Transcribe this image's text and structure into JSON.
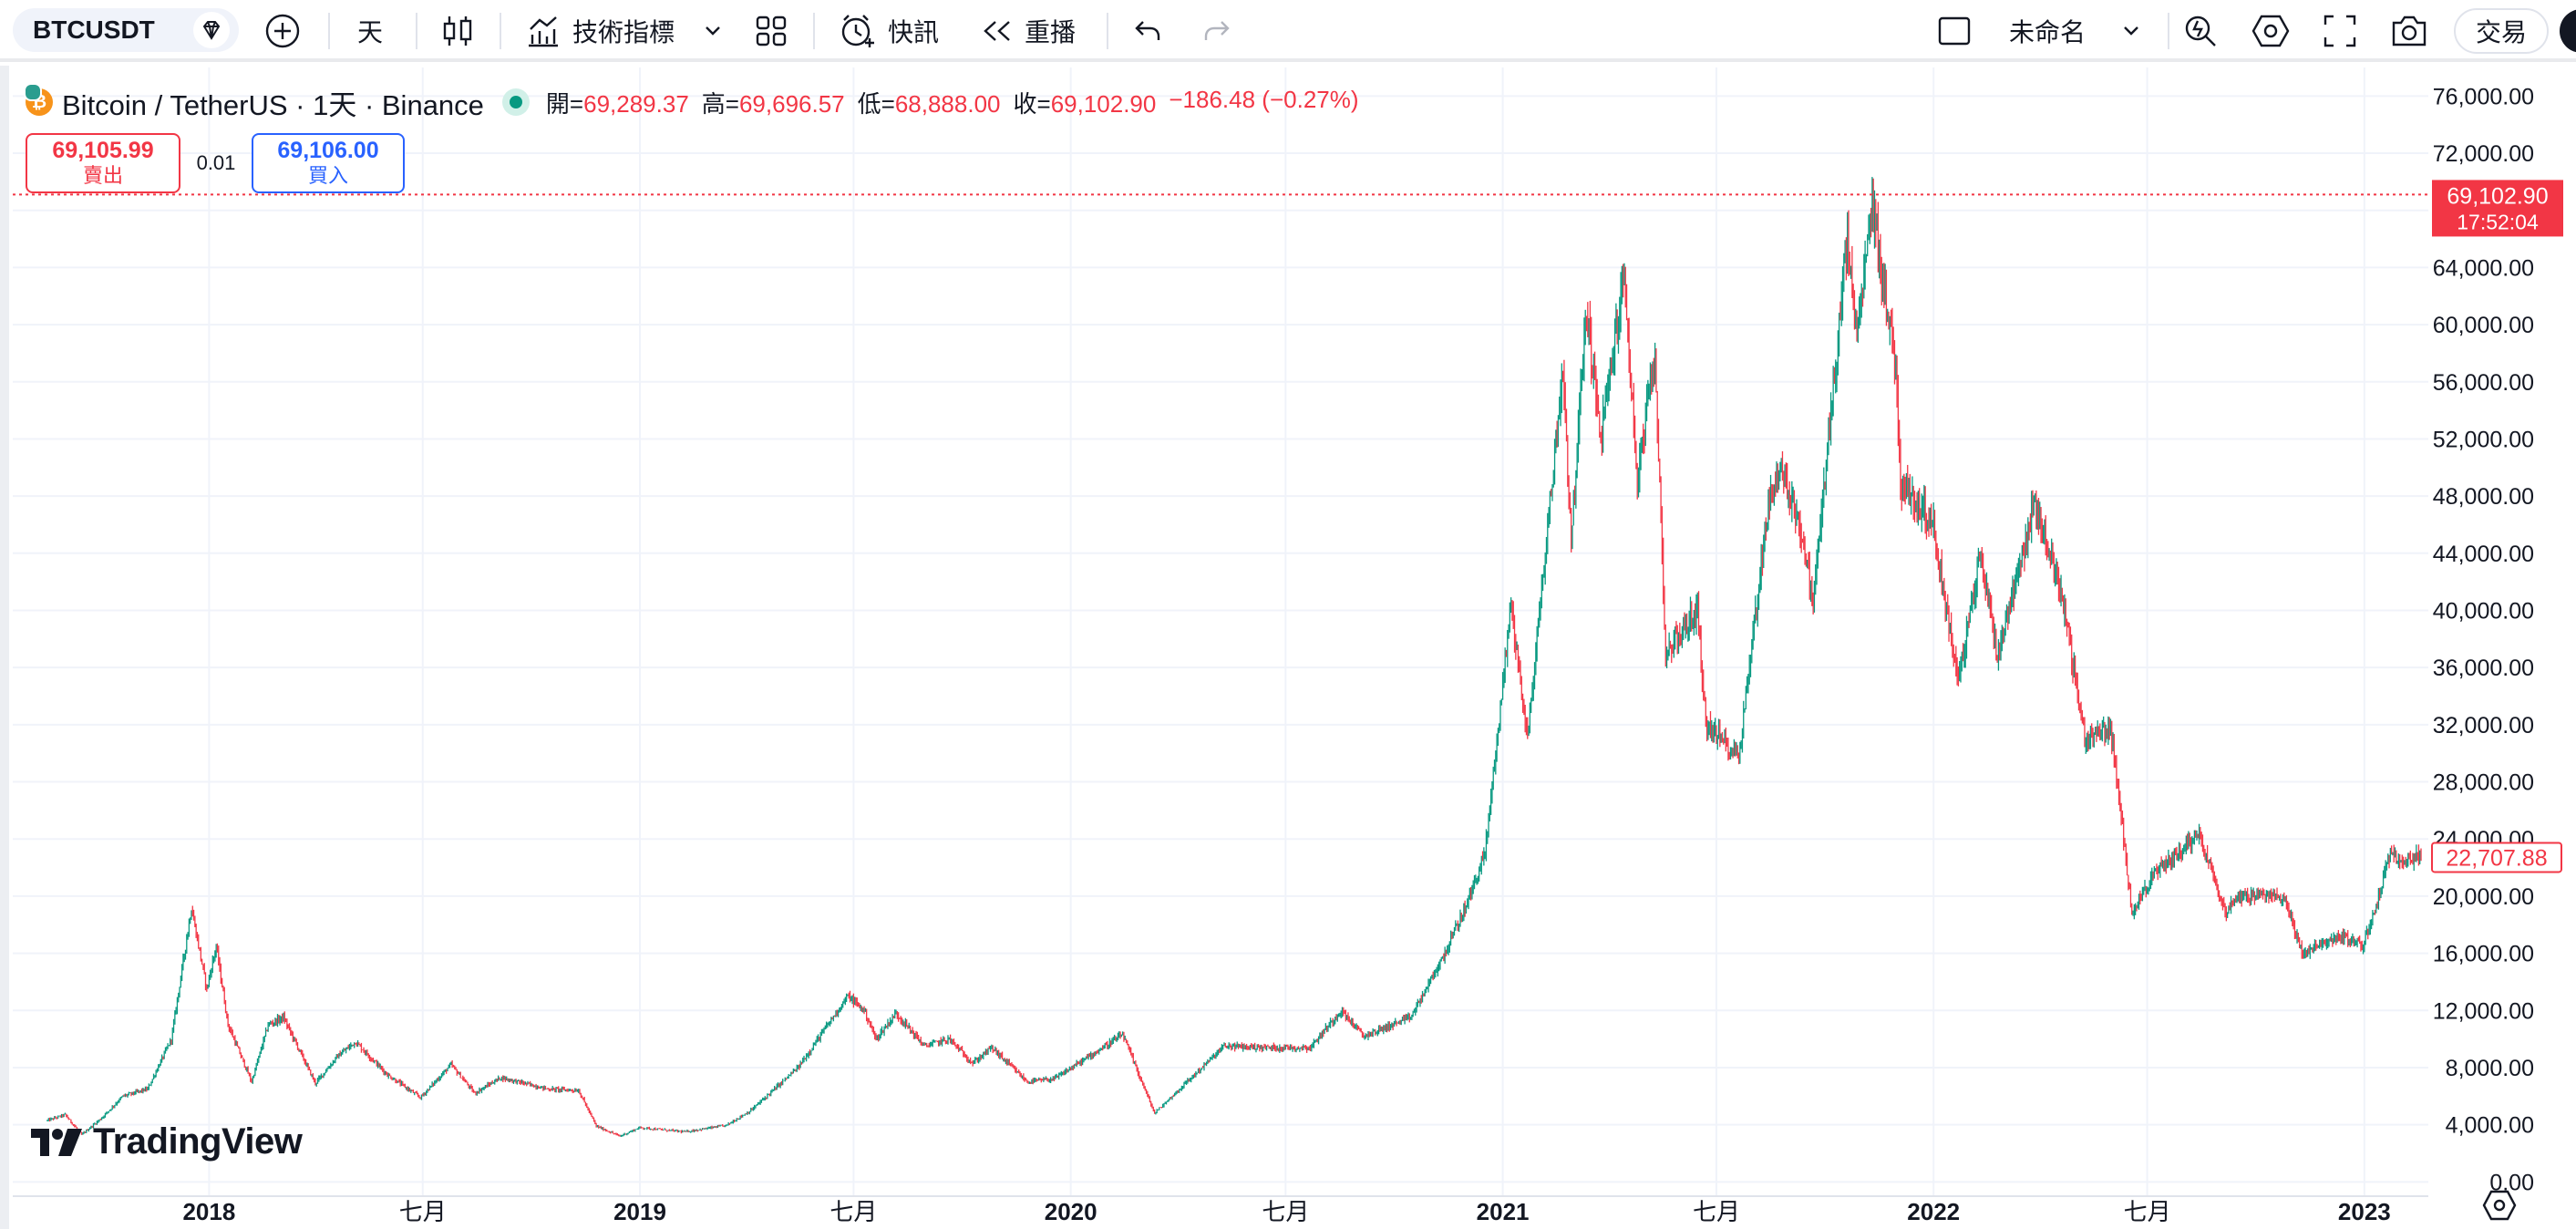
{
  "toolbar": {
    "symbol": "BTCUSDT",
    "interval": "天",
    "indicators_label": "技術指標",
    "alerts_label": "快訊",
    "replay_label": "重播",
    "layout_name": "未命名",
    "trade_label": "交易",
    "icons": [
      "gem-icon",
      "plus-circle-icon",
      "candles-icon",
      "indicators-icon",
      "chevron-down-icon",
      "templates-icon",
      "alarm-clock-icon",
      "replay-icon",
      "undo-icon",
      "redo-icon",
      "layout-square-icon",
      "search-quick-icon",
      "settings-hex-icon",
      "fullscreen-icon",
      "camera-icon"
    ]
  },
  "legend": {
    "title": "Bitcoin / TetherUS · 1天 · Binance",
    "open_label": "開=",
    "open": "69,289.37",
    "high_label": "高=",
    "high": "69,696.57",
    "low_label": "低=",
    "low": "68,888.00",
    "close_label": "收=",
    "close": "69,102.90",
    "change": "−186.48 (−0.27%)"
  },
  "trade_buttons": {
    "sell_price": "69,105.99",
    "sell_label": "賣出",
    "spread": "0.01",
    "buy_price": "69,106.00",
    "buy_label": "買入"
  },
  "price_labels": {
    "current_price": "69,102.90",
    "countdown": "17:52:04",
    "last_candle_price": "22,707.88"
  },
  "brand": {
    "name": "TradingView"
  },
  "colors": {
    "up": "#089981",
    "down": "#f23645",
    "grid": "#f0f3fa",
    "text": "#131722"
  },
  "chart_data": {
    "type": "candlestick",
    "title": "Bitcoin / TetherUS · 1天 · Binance",
    "xlabel": "",
    "ylabel": "",
    "grid": true,
    "ylim": [
      -1000,
      78000
    ],
    "y_ticks": [
      "76,000.00",
      "72,000.00",
      "68,000.00",
      "64,000.00",
      "60,000.00",
      "56,000.00",
      "52,000.00",
      "48,000.00",
      "44,000.00",
      "40,000.00",
      "36,000.00",
      "32,000.00",
      "28,000.00",
      "24,000.00",
      "20,000.00",
      "16,000.00",
      "12,000.00",
      "8,000.00",
      "4,000.00",
      "0.00"
    ],
    "y_tick_values": [
      76000,
      72000,
      68000,
      64000,
      60000,
      56000,
      52000,
      48000,
      44000,
      40000,
      36000,
      32000,
      28000,
      24000,
      20000,
      16000,
      12000,
      8000,
      4000,
      0
    ],
    "x_range": [
      "2017-08-17",
      "2023-02-18"
    ],
    "x_ticks": [
      {
        "date": "2018-01-01",
        "label": "2018",
        "major": true
      },
      {
        "date": "2018-07-01",
        "label": "七月",
        "major": false
      },
      {
        "date": "2019-01-01",
        "label": "2019",
        "major": true
      },
      {
        "date": "2019-07-01",
        "label": "七月",
        "major": false
      },
      {
        "date": "2020-01-01",
        "label": "2020",
        "major": true
      },
      {
        "date": "2020-07-01",
        "label": "七月",
        "major": false
      },
      {
        "date": "2021-01-01",
        "label": "2021",
        "major": true
      },
      {
        "date": "2021-07-01",
        "label": "七月",
        "major": false
      },
      {
        "date": "2022-01-01",
        "label": "2022",
        "major": true
      },
      {
        "date": "2022-07-01",
        "label": "七月",
        "major": false
      },
      {
        "date": "2023-01-01",
        "label": "2023",
        "major": true
      }
    ],
    "close_path": [
      [
        "2017-08-17",
        4300
      ],
      [
        "2017-09-01",
        4700
      ],
      [
        "2017-09-15",
        3300
      ],
      [
        "2017-10-01",
        4400
      ],
      [
        "2017-10-20",
        6000
      ],
      [
        "2017-11-10",
        6500
      ],
      [
        "2017-11-30",
        10000
      ],
      [
        "2017-12-17",
        19200
      ],
      [
        "2017-12-30",
        13500
      ],
      [
        "2018-01-07",
        16500
      ],
      [
        "2018-01-17",
        11000
      ],
      [
        "2018-02-06",
        7000
      ],
      [
        "2018-02-20",
        11000
      ],
      [
        "2018-03-05",
        11500
      ],
      [
        "2018-04-01",
        6900
      ],
      [
        "2018-04-20",
        8800
      ],
      [
        "2018-05-05",
        9800
      ],
      [
        "2018-06-01",
        7500
      ],
      [
        "2018-06-29",
        5900
      ],
      [
        "2018-07-25",
        8200
      ],
      [
        "2018-08-14",
        6200
      ],
      [
        "2018-09-05",
        7300
      ],
      [
        "2018-10-15",
        6500
      ],
      [
        "2018-11-10",
        6400
      ],
      [
        "2018-11-25",
        3900
      ],
      [
        "2018-12-15",
        3200
      ],
      [
        "2019-01-01",
        3800
      ],
      [
        "2019-02-08",
        3500
      ],
      [
        "2019-03-15",
        3950
      ],
      [
        "2019-04-05",
        5000
      ],
      [
        "2019-05-15",
        8000
      ],
      [
        "2019-06-26",
        13000
      ],
      [
        "2019-07-10",
        12000
      ],
      [
        "2019-07-20",
        10000
      ],
      [
        "2019-08-06",
        11800
      ],
      [
        "2019-08-30",
        9500
      ],
      [
        "2019-09-20",
        10000
      ],
      [
        "2019-10-10",
        8300
      ],
      [
        "2019-10-26",
        9400
      ],
      [
        "2019-11-25",
        7000
      ],
      [
        "2019-12-18",
        7200
      ],
      [
        "2020-01-15",
        8700
      ],
      [
        "2020-02-14",
        10300
      ],
      [
        "2020-03-12",
        4800
      ],
      [
        "2020-04-01",
        6400
      ],
      [
        "2020-05-10",
        9500
      ],
      [
        "2020-06-15",
        9400
      ],
      [
        "2020-07-22",
        9400
      ],
      [
        "2020-08-17",
        12000
      ],
      [
        "2020-09-05",
        10200
      ],
      [
        "2020-10-15",
        11500
      ],
      [
        "2020-11-10",
        15500
      ],
      [
        "2020-12-01",
        19300
      ],
      [
        "2020-12-17",
        23000
      ],
      [
        "2021-01-08",
        40500
      ],
      [
        "2021-01-22",
        31000
      ],
      [
        "2021-02-21",
        57000
      ],
      [
        "2021-02-28",
        45000
      ],
      [
        "2021-03-13",
        61200
      ],
      [
        "2021-03-25",
        52000
      ],
      [
        "2021-04-14",
        63500
      ],
      [
        "2021-04-25",
        49000
      ],
      [
        "2021-05-10",
        58000
      ],
      [
        "2021-05-19",
        37000
      ],
      [
        "2021-06-15",
        40000
      ],
      [
        "2021-06-22",
        32000
      ],
      [
        "2021-07-20",
        29800
      ],
      [
        "2021-08-14",
        47500
      ],
      [
        "2021-08-23",
        49800
      ],
      [
        "2021-09-07",
        47000
      ],
      [
        "2021-09-21",
        40700
      ],
      [
        "2021-10-20",
        66000
      ],
      [
        "2021-10-28",
        59000
      ],
      [
        "2021-11-10",
        68500
      ],
      [
        "2021-11-30",
        57000
      ],
      [
        "2021-12-04",
        49000
      ],
      [
        "2021-12-31",
        46200
      ],
      [
        "2022-01-22",
        35000
      ],
      [
        "2022-02-10",
        44000
      ],
      [
        "2022-02-24",
        37000
      ],
      [
        "2022-03-28",
        47500
      ],
      [
        "2022-04-20",
        41000
      ],
      [
        "2022-05-09",
        31000
      ],
      [
        "2022-05-31",
        31800
      ],
      [
        "2022-06-13",
        22500
      ],
      [
        "2022-06-18",
        19000
      ],
      [
        "2022-07-08",
        21600
      ],
      [
        "2022-08-14",
        24400
      ],
      [
        "2022-09-06",
        18800
      ],
      [
        "2022-09-15",
        20000
      ],
      [
        "2022-10-25",
        20000
      ],
      [
        "2022-11-09",
        16000
      ],
      [
        "2022-12-12",
        17200
      ],
      [
        "2022-12-31",
        16550
      ],
      [
        "2023-01-13",
        19900
      ],
      [
        "2023-01-21",
        22700
      ],
      [
        "2023-02-18",
        22707.88
      ]
    ],
    "all_time_high": 69000
  }
}
